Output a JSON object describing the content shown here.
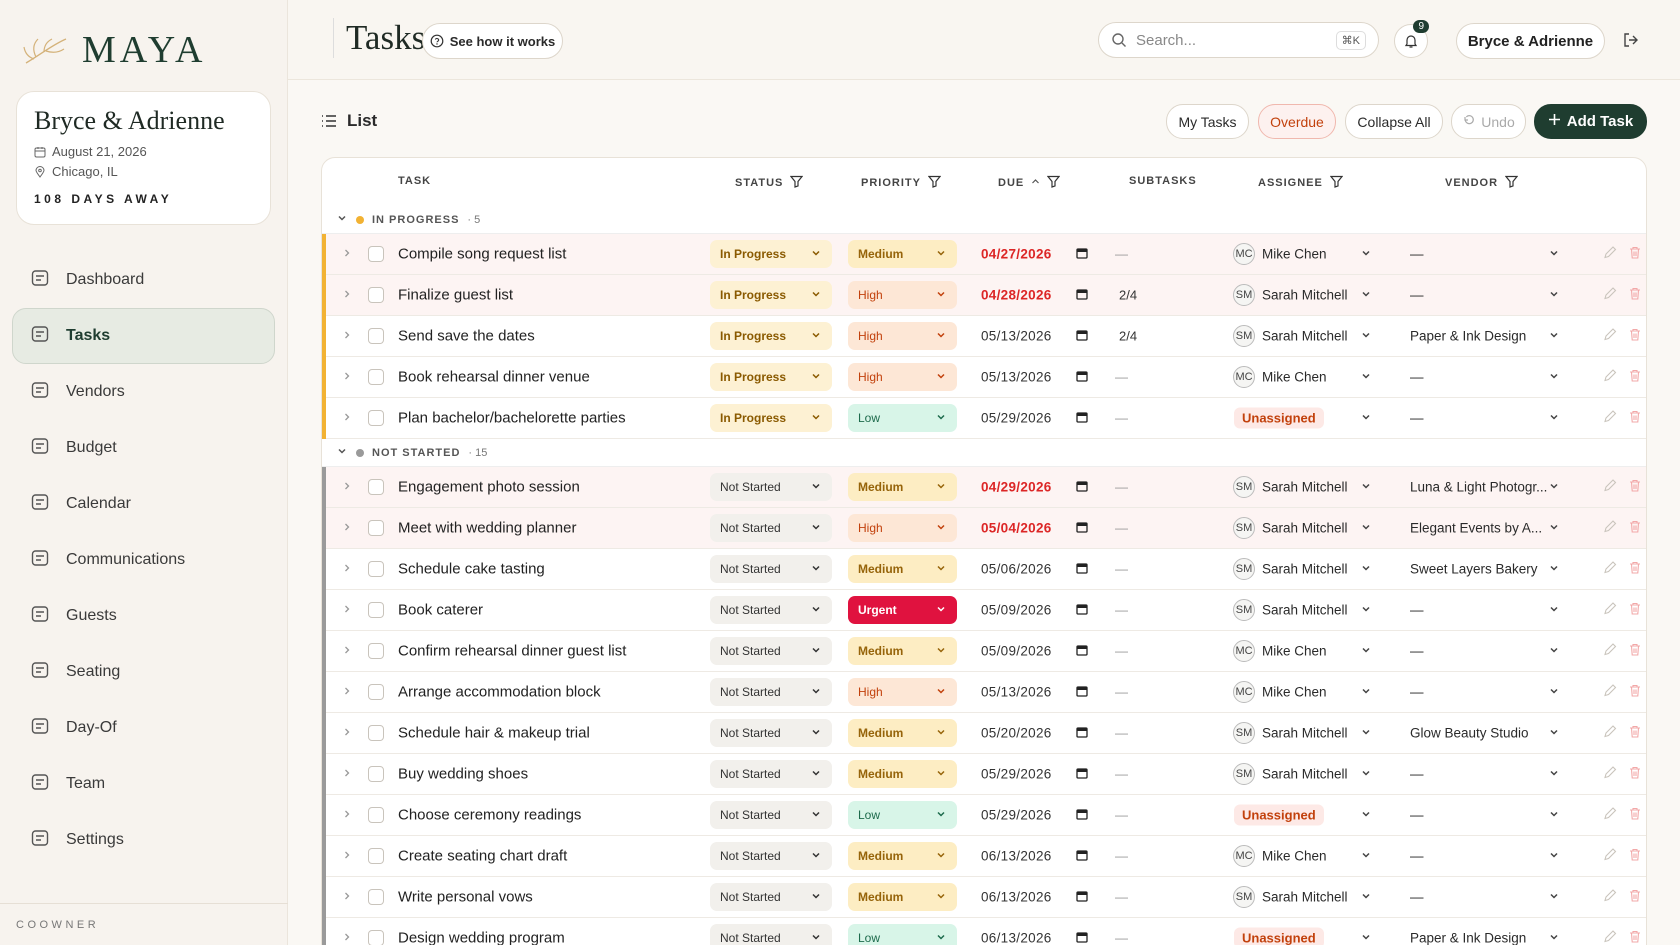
{
  "sidebar": {
    "brand": "MAYA",
    "couple": "Bryce & Adrienne",
    "date": "August 21, 2026",
    "location": "Chicago, IL",
    "countdown": "108 DAYS AWAY",
    "nav": [
      "Dashboard",
      "Tasks",
      "Vendors",
      "Budget",
      "Calendar",
      "Communications",
      "Guests",
      "Seating",
      "Day-Of",
      "Team",
      "Settings"
    ],
    "active": 1,
    "footer": "COOWNER"
  },
  "header": {
    "title": "Tasks",
    "help": "See how it works",
    "search": "Search...",
    "shortcut": "⌘K",
    "notifications": "9",
    "user": "Bryce & Adrienne"
  },
  "toolbar": {
    "view": "List",
    "buttons": [
      "My Tasks",
      "Overdue",
      "Collapse All",
      "Undo",
      "Add Task"
    ]
  },
  "table": {
    "columns": [
      {
        "label": "TASK"
      },
      {
        "label": "STATUS",
        "filter": true
      },
      {
        "label": "PRIORITY",
        "filter": true
      },
      {
        "label": "DUE",
        "filter": true,
        "sort": "asc"
      },
      {
        "label": "SUBTASKS"
      },
      {
        "label": "ASSIGNEE",
        "filter": true
      },
      {
        "label": "VENDOR",
        "filter": true
      }
    ],
    "groups": [
      {
        "label": "IN PROGRESS",
        "count": "· 5",
        "color": "#f2b233",
        "rows": [
          {
            "task": "Compile song request list",
            "status": "In Progress",
            "priority": "Medium",
            "due": "04/27/2026",
            "overdue": true,
            "subtasks": "—",
            "initials": "MC",
            "assignee": "Mike Chen",
            "vendor": "—"
          },
          {
            "task": "Finalize guest list",
            "status": "In Progress",
            "priority": "High",
            "due": "04/28/2026",
            "overdue": true,
            "subtasks": "2/4",
            "initials": "SM",
            "assignee": "Sarah Mitchell",
            "vendor": "—"
          },
          {
            "task": "Send save the dates",
            "status": "In Progress",
            "priority": "High",
            "due": "05/13/2026",
            "overdue": false,
            "subtasks": "2/4",
            "initials": "SM",
            "assignee": "Sarah Mitchell",
            "vendor": "Paper & Ink Design"
          },
          {
            "task": "Book rehearsal dinner venue",
            "status": "In Progress",
            "priority": "High",
            "due": "05/13/2026",
            "overdue": false,
            "subtasks": "—",
            "initials": "MC",
            "assignee": "Mike Chen",
            "vendor": "—"
          },
          {
            "task": "Plan bachelor/bachelorette parties",
            "status": "In Progress",
            "priority": "Low",
            "due": "05/29/2026",
            "overdue": false,
            "subtasks": "—",
            "assignee": "Unassigned",
            "vendor": "—"
          }
        ]
      },
      {
        "label": "NOT STARTED",
        "count": "· 15",
        "color": "#9a9a9a",
        "rows": [
          {
            "task": "Engagement photo session",
            "status": "Not Started",
            "priority": "Medium",
            "due": "04/29/2026",
            "overdue": true,
            "subtasks": "—",
            "initials": "SM",
            "assignee": "Sarah Mitchell",
            "vendor": "Luna & Light Photogr..."
          },
          {
            "task": "Meet with wedding planner",
            "status": "Not Started",
            "priority": "High",
            "due": "05/04/2026",
            "overdue": true,
            "subtasks": "—",
            "initials": "SM",
            "assignee": "Sarah Mitchell",
            "vendor": "Elegant Events by A..."
          },
          {
            "task": "Schedule cake tasting",
            "status": "Not Started",
            "priority": "Medium",
            "due": "05/06/2026",
            "overdue": false,
            "subtasks": "—",
            "initials": "SM",
            "assignee": "Sarah Mitchell",
            "vendor": "Sweet Layers Bakery"
          },
          {
            "task": "Book caterer",
            "status": "Not Started",
            "priority": "Urgent",
            "due": "05/09/2026",
            "overdue": false,
            "subtasks": "—",
            "initials": "SM",
            "assignee": "Sarah Mitchell",
            "vendor": "—"
          },
          {
            "task": "Confirm rehearsal dinner guest list",
            "status": "Not Started",
            "priority": "Medium",
            "due": "05/09/2026",
            "overdue": false,
            "subtasks": "—",
            "initials": "MC",
            "assignee": "Mike Chen",
            "vendor": "—"
          },
          {
            "task": "Arrange accommodation block",
            "status": "Not Started",
            "priority": "High",
            "due": "05/13/2026",
            "overdue": false,
            "subtasks": "—",
            "initials": "MC",
            "assignee": "Mike Chen",
            "vendor": "—"
          },
          {
            "task": "Schedule hair & makeup trial",
            "status": "Not Started",
            "priority": "Medium",
            "due": "05/20/2026",
            "overdue": false,
            "subtasks": "—",
            "initials": "SM",
            "assignee": "Sarah Mitchell",
            "vendor": "Glow Beauty Studio"
          },
          {
            "task": "Buy wedding shoes",
            "status": "Not Started",
            "priority": "Medium",
            "due": "05/29/2026",
            "overdue": false,
            "subtasks": "—",
            "initials": "SM",
            "assignee": "Sarah Mitchell",
            "vendor": "—"
          },
          {
            "task": "Choose ceremony readings",
            "status": "Not Started",
            "priority": "Low",
            "due": "05/29/2026",
            "overdue": false,
            "subtasks": "—",
            "assignee": "Unassigned",
            "vendor": "—"
          },
          {
            "task": "Create seating chart draft",
            "status": "Not Started",
            "priority": "Medium",
            "due": "06/13/2026",
            "overdue": false,
            "subtasks": "—",
            "initials": "MC",
            "assignee": "Mike Chen",
            "vendor": "—"
          },
          {
            "task": "Write personal vows",
            "status": "Not Started",
            "priority": "Medium",
            "due": "06/13/2026",
            "overdue": false,
            "subtasks": "—",
            "initials": "SM",
            "assignee": "Sarah Mitchell",
            "vendor": "—"
          },
          {
            "task": "Design wedding program",
            "status": "Not Started",
            "priority": "Low",
            "due": "06/13/2026",
            "overdue": false,
            "subtasks": "—",
            "assignee": "Unassigned",
            "vendor": "Paper & Ink Design"
          }
        ]
      }
    ]
  }
}
